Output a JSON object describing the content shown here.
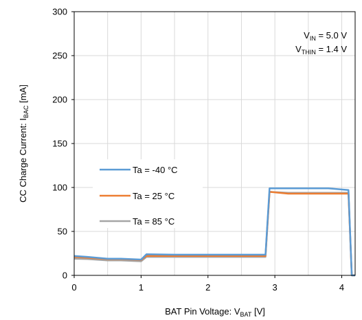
{
  "chart_data": {
    "type": "line",
    "title": "",
    "xlabel": {
      "main": "BAT Pin Voltage: V",
      "sub": "BAT",
      "unit": " [V]"
    },
    "ylabel": {
      "main": "CC Charge Current: I",
      "sub": "BAC",
      "unit": " [mA]"
    },
    "xlim": [
      0,
      4.2
    ],
    "ylim": [
      0,
      300
    ],
    "xticks": [
      0,
      1,
      2,
      3,
      4
    ],
    "yticks": [
      0,
      50,
      100,
      150,
      200,
      250,
      300
    ],
    "grid": true,
    "minor_x_step": 0.5,
    "annotations": [
      {
        "main": "V",
        "sub": "IN",
        "rest": " = 5.0 V"
      },
      {
        "main": "V",
        "sub": "THIN",
        "rest": " = 1.4 V"
      }
    ],
    "legend_position": "center-left",
    "series": [
      {
        "name": "Ta =  -40 °C",
        "color": "#5b9bd5",
        "x": [
          0,
          0.2,
          0.5,
          0.7,
          1.0,
          1.08,
          1.5,
          2.0,
          2.5,
          2.86,
          2.92,
          3.2,
          3.6,
          3.8,
          4.1,
          4.15,
          4.2
        ],
        "y": [
          22,
          21,
          19,
          19,
          18,
          24,
          23.5,
          23.5,
          23.5,
          23.5,
          99,
          99,
          99,
          99,
          97,
          0,
          0
        ]
      },
      {
        "name": "Ta =  25 °C",
        "color": "#ed7d31",
        "x": [
          0,
          0.2,
          0.5,
          0.7,
          1.0,
          1.08,
          1.5,
          2.0,
          2.5,
          2.86,
          2.92,
          3.2,
          3.6,
          3.8,
          4.1,
          4.15,
          4.2
        ],
        "y": [
          21,
          20,
          18.5,
          18.5,
          17.5,
          22,
          22,
          22,
          22,
          22,
          95,
          93,
          93,
          93,
          93,
          0,
          0
        ]
      },
      {
        "name": "Ta =  85 °C",
        "color": "#a5a5a5",
        "x": [
          0,
          0.2,
          0.5,
          0.7,
          1.0,
          1.08,
          1.5,
          2.0,
          2.5,
          2.86,
          2.92,
          3.2,
          3.6,
          3.8,
          4.1,
          4.15,
          4.2
        ],
        "y": [
          19,
          18.5,
          17,
          17,
          16,
          21,
          21,
          21,
          21,
          21,
          95,
          94,
          94,
          94,
          94,
          0,
          0
        ]
      }
    ]
  }
}
